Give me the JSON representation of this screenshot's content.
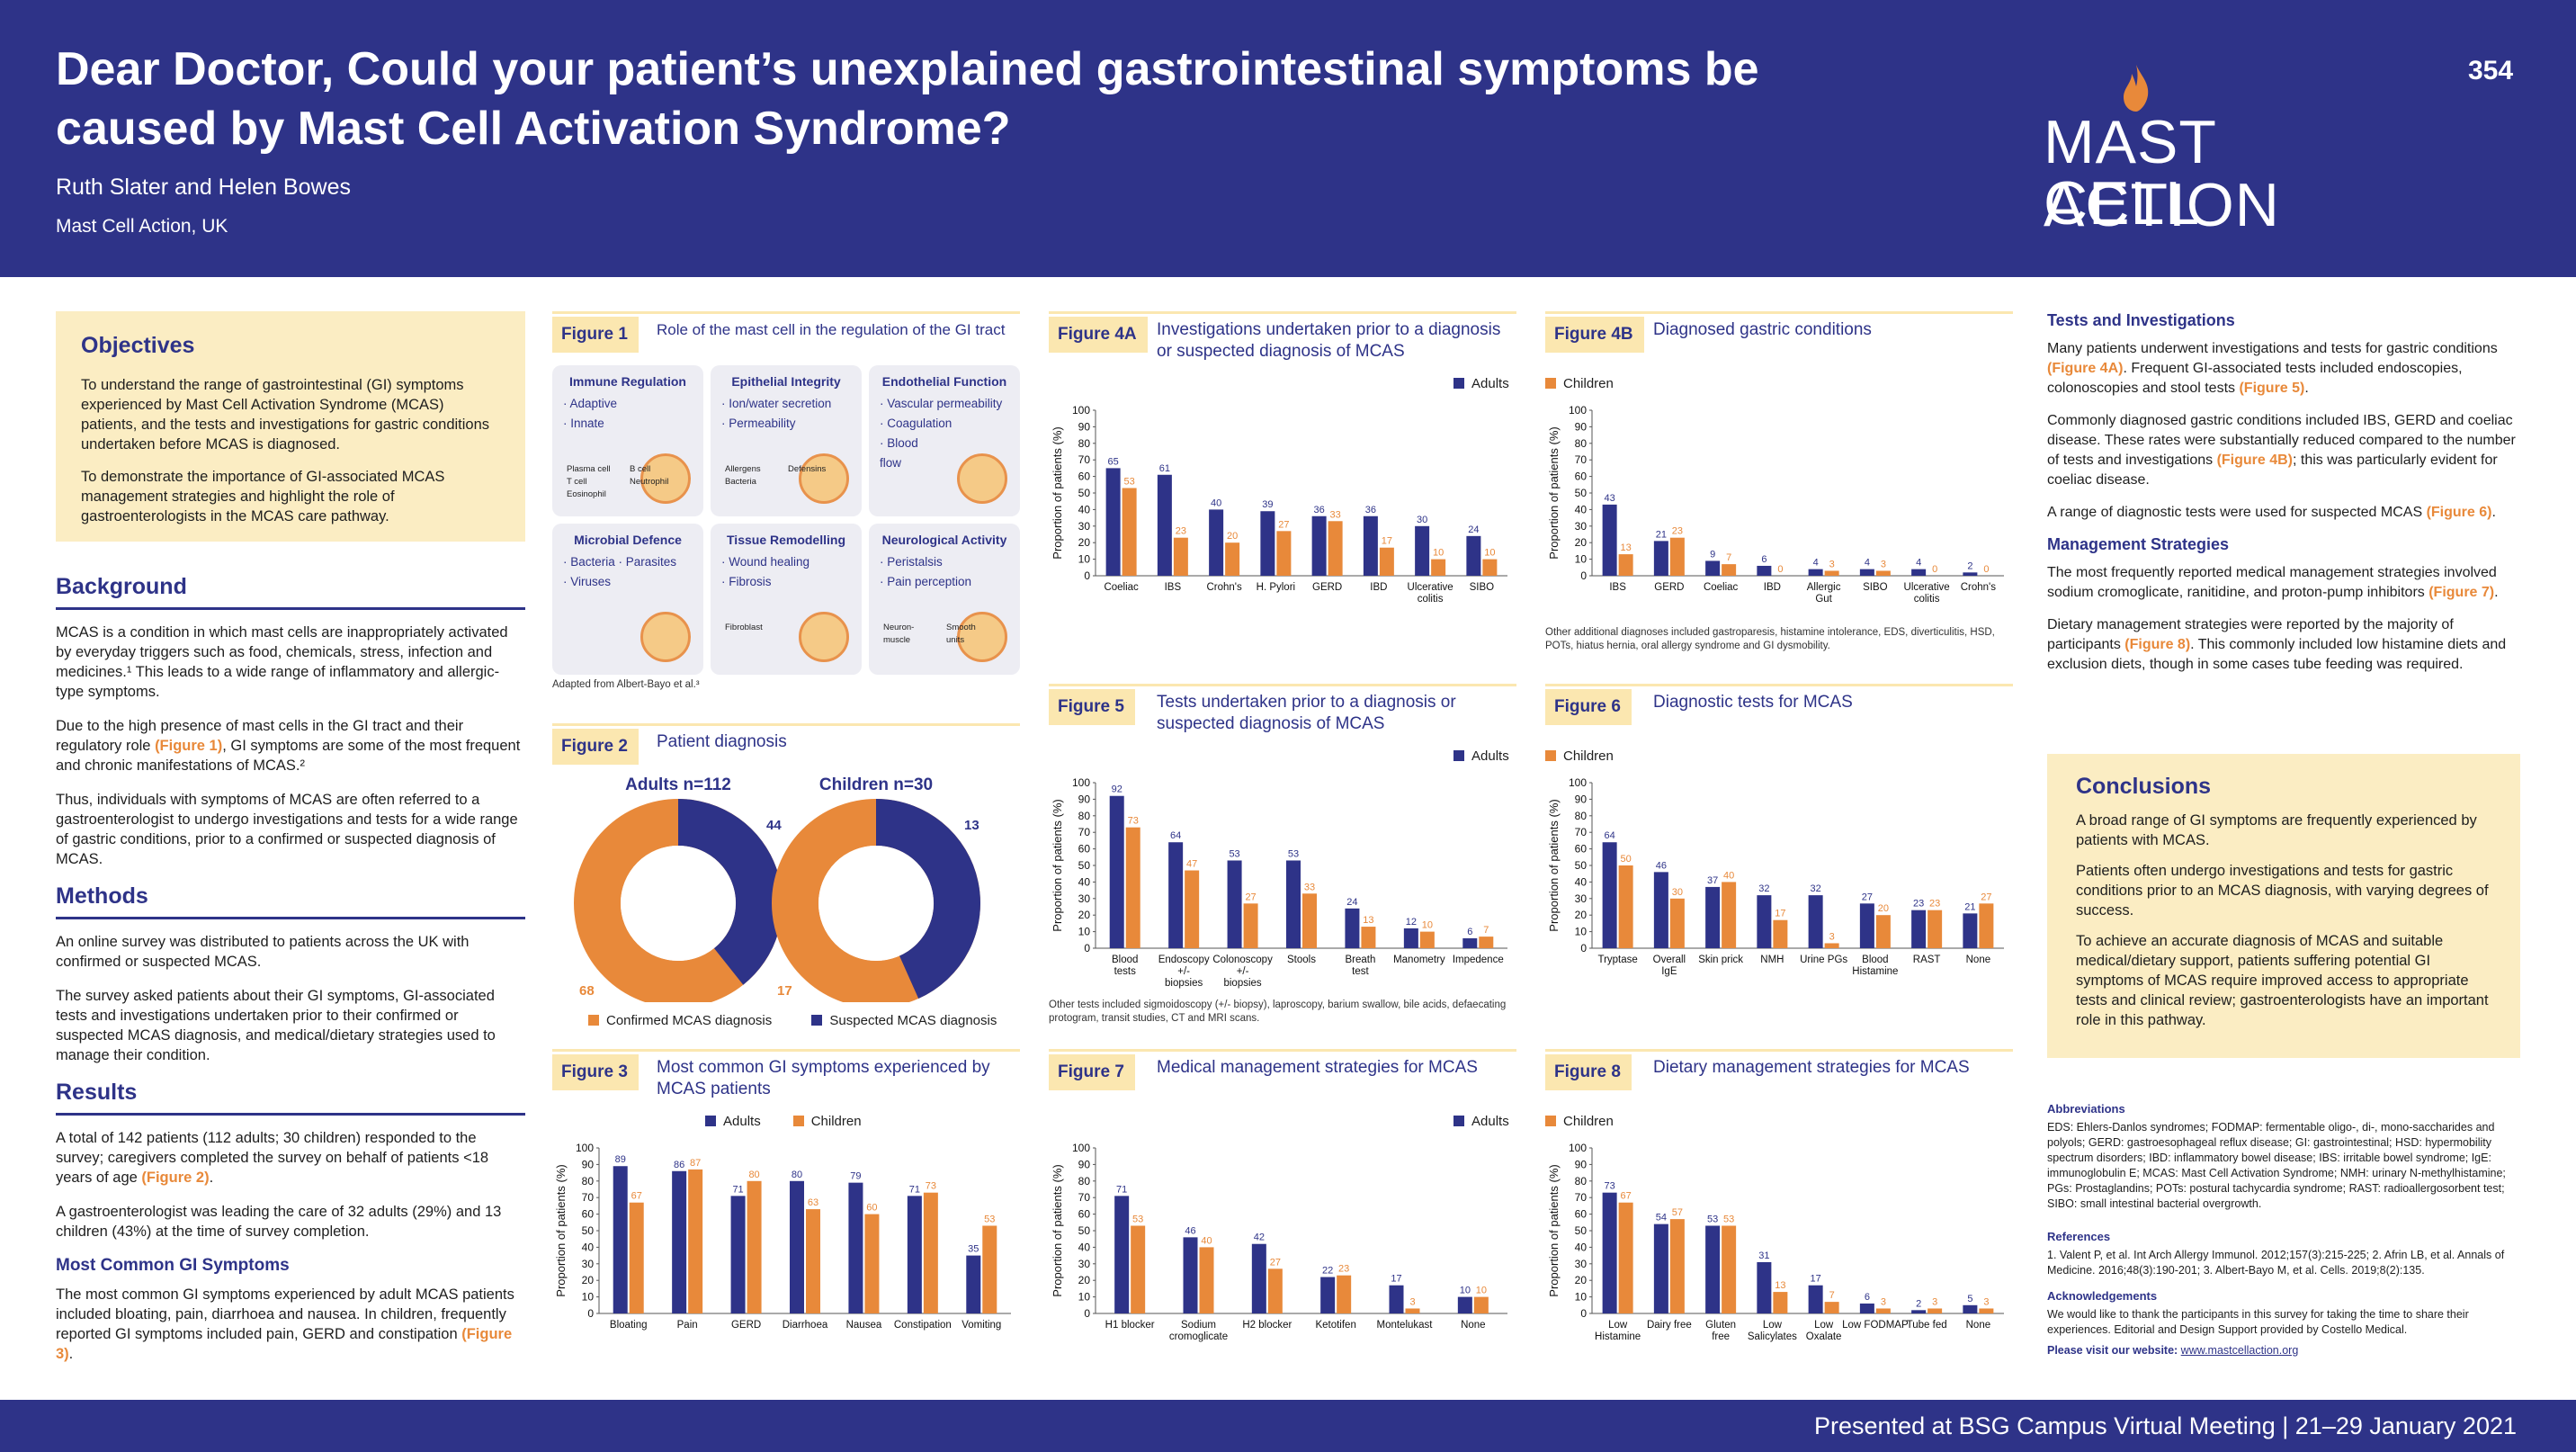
{
  "header": {
    "title": "Dear Doctor, Could your patient’s unexplained gastrointestinal symptoms be caused by Mast Cell Activation Syndrome?",
    "authors": "Ruth Slater and Helen Bowes",
    "affiliation": "Mast Cell Action, UK",
    "poster_number": "354",
    "logo_line1": "MAST CELL",
    "logo_line2": "ACTION"
  },
  "footer": {
    "text": "Presented at BSG Campus Virtual Meeting  |  21–29 January 2021"
  },
  "objectives": {
    "heading": "Objectives",
    "p1": "To understand the range of gastrointestinal (GI) symptoms experienced by Mast Cell Activation Syndrome (MCAS) patients, and the tests and investigations for gastric conditions undertaken before MCAS is diagnosed.",
    "p2": "To demonstrate the importance of GI-associated MCAS management strategies and highlight the role of gastroenterologists in the MCAS care pathway."
  },
  "background": {
    "heading": "Background",
    "p1": "MCAS is a condition in which mast cells are inappropriately activated by everyday triggers such as food, chemicals, stress, infection and medicines.¹ This leads to a wide range of inflammatory and allergic-type symptoms.",
    "p2a": "Due to the high presence of mast cells in the GI tract and their regulatory role ",
    "p2ref": "(Figure 1)",
    "p2b": ", GI symptoms are some of the most frequent and chronic manifestations of MCAS.²",
    "p3": "Thus, individuals with symptoms of MCAS are often referred to a gastroenterologist to undergo investigations and tests for a wide range of gastric conditions, prior to a confirmed or suspected diagnosis of MCAS."
  },
  "methods": {
    "heading": "Methods",
    "p1": "An online survey was distributed to patients across the UK with confirmed or suspected MCAS.",
    "p2": "The survey asked patients about their GI symptoms, GI-associated tests and investigations undertaken prior to their confirmed or suspected MCAS diagnosis, and medical/dietary strategies used to manage their condition."
  },
  "results": {
    "heading": "Results",
    "p1a": "A total of 142 patients (112 adults; 30 children) responded to the survey; caregivers completed the survey on behalf of patients <18 years of age ",
    "p1ref": "(Figure 2)",
    "p1b": ".",
    "p2": "A gastroenterologist was leading the care of 32 adults (29%) and 13 children (43%) at the time of survey completion.",
    "subheading": "Most Common GI Symptoms",
    "p3a": "The most common GI symptoms experienced by adult MCAS patients included bloating, pain, diarrhoea and nausea. In children, frequently reported GI symptoms included pain, GERD and constipation ",
    "p3ref": "(Figure 3)",
    "p3b": "."
  },
  "fig1": {
    "label": "Figure 1",
    "title": "Role of the mast cell in the regulation of the GI tract",
    "note": "Adapted from Albert-Bayo et al.³",
    "cells": [
      {
        "title": "Immune Regulation",
        "items": [
          "· Adaptive",
          "· Innate"
        ],
        "pics": [
          "Plasma cell",
          "B cell",
          "T cell",
          "Neutrophil",
          "Eosinophil"
        ]
      },
      {
        "title": "Epithelial Integrity",
        "items": [
          "· Ion/water secretion",
          "· Permeability"
        ],
        "pics": [
          "Allergens",
          "Defensins",
          "Bacteria"
        ]
      },
      {
        "title": "Endothelial Function",
        "items": [
          "· Vascular permeability",
          "· Coagulation",
          "· Blood",
          "  flow"
        ],
        "pics": []
      },
      {
        "title": "Microbial Defence",
        "items": [
          "· Bacteria   · Parasites",
          "· Viruses"
        ],
        "pics": []
      },
      {
        "title": "Tissue Remodelling",
        "items": [
          "· Wound healing",
          "· Fibrosis"
        ],
        "pics": [
          "Fibroblast"
        ]
      },
      {
        "title": "Neurological Activity",
        "items": [
          "· Peristalsis",
          "· Pain perception"
        ],
        "pics": [
          "Neuron-",
          "Smooth",
          "muscle",
          "units"
        ]
      }
    ]
  },
  "fig2": {
    "label": "Figure 2",
    "title": "Patient diagnosis",
    "legend": [
      "Confirmed MCAS diagnosis",
      "Suspected MCAS diagnosis"
    ]
  },
  "fig3": {
    "label": "Figure 3",
    "title": "Most common GI symptoms experienced by MCAS patients"
  },
  "fig4a": {
    "label": "Figure 4A",
    "title": "Investigations undertaken prior to a diagnosis or suspected diagnosis of MCAS"
  },
  "fig4b": {
    "label": "Figure 4B",
    "title": "Diagnosed gastric conditions",
    "note": "Other additional diagnoses included gastroparesis, histamine intolerance, EDS, diverticulitis, HSD, POTs, hiatus hernia, oral allergy syndrome and GI dysmobility."
  },
  "fig5": {
    "label": "Figure 5",
    "title": "Tests undertaken prior to a diagnosis or suspected diagnosis of MCAS",
    "note": "Other tests included sigmoidoscopy (+/- biopsy), laproscopy, barium swallow, bile acids, defaecating protogram, transit studies, CT and MRI scans."
  },
  "fig6": {
    "label": "Figure 6",
    "title": "Diagnostic tests for MCAS"
  },
  "fig7": {
    "label": "Figure 7",
    "title": "Medical management strategies for MCAS"
  },
  "fig8": {
    "label": "Figure 8",
    "title": "Dietary management strategies for MCAS"
  },
  "legend": {
    "adults": "Adults",
    "children": "Children"
  },
  "colors": {
    "adults": "#2e3388",
    "children": "#e8893a",
    "header": "#2e3388",
    "box": "#fbedc3"
  },
  "chart_data": [
    {
      "id": "fig2",
      "type": "pie",
      "groups": [
        {
          "title": "Adults n=112",
          "confirmed": 68,
          "suspected": 44
        },
        {
          "title": "Children n=30",
          "confirmed": 17,
          "suspected": 13
        }
      ]
    },
    {
      "id": "fig3",
      "type": "bar",
      "ylabel": "Proportion of patients (%)",
      "ylim": [
        0,
        100
      ],
      "categories": [
        "Bloating",
        "Pain",
        "GERD",
        "Diarrhoea",
        "Nausea",
        "Constipation",
        "Vomiting"
      ],
      "series": [
        {
          "name": "Adults",
          "values": [
            89,
            86,
            71,
            80,
            79,
            71,
            35
          ]
        },
        {
          "name": "Children",
          "values": [
            67,
            87,
            80,
            63,
            60,
            73,
            53
          ]
        }
      ]
    },
    {
      "id": "fig4a",
      "type": "bar",
      "ylabel": "Proportion of patients (%)",
      "ylim": [
        0,
        100
      ],
      "categories": [
        "Coeliac",
        "IBS",
        "Crohn's",
        "H. Pylori",
        "GERD",
        "IBD",
        "Ulcerative colitis",
        "SIBO"
      ],
      "series": [
        {
          "name": "Adults",
          "values": [
            65,
            61,
            40,
            39,
            36,
            36,
            30,
            24
          ]
        },
        {
          "name": "Children",
          "values": [
            53,
            23,
            20,
            27,
            33,
            17,
            10,
            10
          ]
        }
      ]
    },
    {
      "id": "fig4b",
      "type": "bar",
      "ylabel": "Proportion of patients (%)",
      "ylim": [
        0,
        100
      ],
      "categories": [
        "IBS",
        "GERD",
        "Coeliac",
        "IBD",
        "Allergic Gut",
        "SIBO",
        "Ulcerative colitis",
        "Crohn's"
      ],
      "series": [
        {
          "name": "Adults",
          "values": [
            43,
            21,
            9,
            6,
            4,
            4,
            4,
            2
          ]
        },
        {
          "name": "Children",
          "values": [
            13,
            23,
            7,
            0,
            3,
            3,
            0,
            0
          ]
        }
      ]
    },
    {
      "id": "fig5",
      "type": "bar",
      "ylabel": "Proportion of patients (%)",
      "ylim": [
        0,
        100
      ],
      "categories": [
        "Blood tests",
        "Endoscopy +/- biopsies",
        "Colonoscopy +/- biopsies",
        "Stools",
        "Breath test",
        "Manometry",
        "Impedence"
      ],
      "series": [
        {
          "name": "Adults",
          "values": [
            92,
            64,
            53,
            53,
            24,
            12,
            6
          ]
        },
        {
          "name": "Children",
          "values": [
            73,
            47,
            27,
            33,
            13,
            10,
            7
          ]
        }
      ]
    },
    {
      "id": "fig6",
      "type": "bar",
      "ylabel": "Proportion of patients (%)",
      "ylim": [
        0,
        100
      ],
      "categories": [
        "Tryptase",
        "Overall IgE",
        "Skin prick",
        "NMH",
        "Urine PGs",
        "Blood Histamine",
        "RAST",
        "None"
      ],
      "series": [
        {
          "name": "Adults",
          "values": [
            64,
            46,
            37,
            32,
            32,
            27,
            23,
            21
          ]
        },
        {
          "name": "Children",
          "values": [
            50,
            30,
            40,
            17,
            3,
            20,
            23,
            27
          ]
        }
      ]
    },
    {
      "id": "fig7",
      "type": "bar",
      "ylabel": "Proportion of patients (%)",
      "ylim": [
        0,
        100
      ],
      "categories": [
        "H1 blocker",
        "Sodium cromoglicate",
        "H2 blocker",
        "Ketotifen",
        "Montelukast",
        "None"
      ],
      "series": [
        {
          "name": "Adults",
          "values": [
            71,
            46,
            42,
            22,
            17,
            10
          ]
        },
        {
          "name": "Children",
          "values": [
            53,
            40,
            27,
            23,
            3,
            10
          ]
        }
      ]
    },
    {
      "id": "fig8",
      "type": "bar",
      "ylabel": "Proportion of patients (%)",
      "ylim": [
        0,
        100
      ],
      "categories": [
        "Low Histamine",
        "Dairy free",
        "Gluten free",
        "Low Salicylates",
        "Low Oxalate",
        "Low FODMAP",
        "Tube fed",
        "None"
      ],
      "series": [
        {
          "name": "Adults",
          "values": [
            73,
            54,
            53,
            31,
            17,
            6,
            2,
            5
          ]
        },
        {
          "name": "Children",
          "values": [
            67,
            57,
            53,
            13,
            7,
            3,
            3,
            3
          ]
        }
      ]
    }
  ],
  "tests": {
    "heading": "Tests and Investigations",
    "p1a": "Many patients underwent investigations and tests for gastric conditions ",
    "p1ref1": "(Figure 4A)",
    "p1b": ". Frequent GI-associated tests included endoscopies, colonoscopies and stool tests ",
    "p1ref2": "(Figure 5)",
    "p1c": ".",
    "p2a": "Commonly diagnosed gastric conditions included IBS, GERD and coeliac disease. These rates were substantially reduced compared to the number of tests and investigations ",
    "p2ref": "(Figure 4B)",
    "p2b": "; this was particularly evident for coeliac disease.",
    "p3a": "A range of diagnostic tests were used for suspected MCAS ",
    "p3ref": "(Figure 6)",
    "p3b": "."
  },
  "mgmt": {
    "heading": "Management Strategies",
    "p1a": "The most frequently reported medical management strategies involved sodium cromoglicate, ranitidine, and proton-pump inhibitors ",
    "p1ref": "(Figure 7)",
    "p1b": ".",
    "p2a": "Dietary management strategies were reported by the majority of participants ",
    "p2ref": "(Figure 8)",
    "p2b": ". This commonly included low histamine diets and exclusion diets, though in some cases tube feeding was required."
  },
  "conclusions": {
    "heading": "Conclusions",
    "p1": "A broad range of GI symptoms are frequently experienced by patients with MCAS.",
    "p2": "Patients often undergo investigations and tests for gastric conditions prior to an MCAS diagnosis, with varying degrees of success.",
    "p3": "To achieve an accurate diagnosis of MCAS and suitable medical/dietary support, patients suffering potential GI symptoms of MCAS require improved access to appropriate tests and clinical review; gastroenterologists have an important role in this pathway."
  },
  "abbreviations": {
    "heading": "Abbreviations",
    "text": "EDS: Ehlers-Danlos syndromes; FODMAP: fermentable oligo-, di-, mono-saccharides and polyols; GERD: gastroesophageal reflux disease; GI: gastrointestinal; HSD: hypermobility spectrum disorders; IBD: inflammatory bowel disease; IBS: irritable bowel syndrome; IgE: immunoglobulin E; MCAS: Mast Cell Activation Syndrome; NMH: urinary N-methylhistamine; PGs: Prostaglandins; POTs: postural tachycardia syndrome; RAST: radioallergosorbent test; SIBO: small intestinal bacterial overgrowth."
  },
  "references": {
    "heading": "References",
    "text": "1. Valent P, et al. Int Arch Allergy Immunol. 2012;157(3):215-225; 2. Afrin LB, et al. Annals of Medicine. 2016;48(3):190-201; 3. Albert-Bayo M, et al. Cells. 2019;8(2):135."
  },
  "acknowledgements": {
    "heading": "Acknowledgements",
    "text": "We would like to thank the participants in this survey for taking the time to share their experiences. Editorial and Design Support provided by Costello Medical.",
    "visit_label": "Please visit our website: ",
    "url": "www.mastcellaction.org"
  }
}
